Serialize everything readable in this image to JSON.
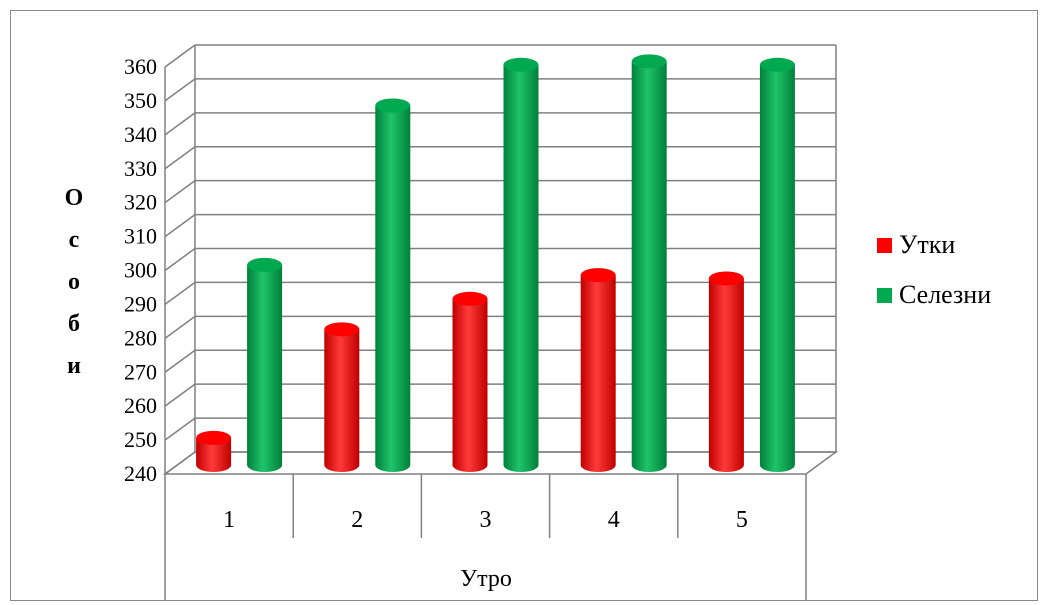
{
  "chart_data": {
    "type": "bar",
    "title": "",
    "categories": [
      "1",
      "2",
      "3",
      "4",
      "5"
    ],
    "series": [
      {
        "name": "Утки",
        "values": [
          248,
          280,
          289,
          296,
          295
        ],
        "color": "#ff0000"
      },
      {
        "name": "Селезни",
        "values": [
          299,
          346,
          358,
          359,
          358
        ],
        "color": "#00a84f"
      }
    ],
    "xlabel": "Утро",
    "ylabel": "Особи",
    "ylim": [
      240,
      360
    ],
    "yticks": [
      240,
      250,
      260,
      270,
      280,
      290,
      300,
      310,
      320,
      330,
      340,
      350,
      360
    ],
    "grid": true,
    "legend_position": "right",
    "style": "3d-cylinder"
  }
}
